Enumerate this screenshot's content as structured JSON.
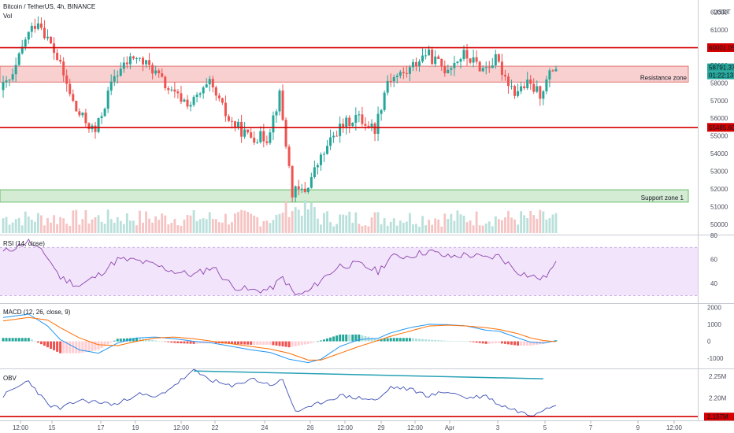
{
  "header": {
    "symbol": "Bitcoin / TetherUS, 4h, BINANCE",
    "volume_label": "Vol",
    "currency": "USDT"
  },
  "colors": {
    "up": "#26a69a",
    "down": "#ef5350",
    "level_line": "#d50000",
    "resistance_fill": "#f8d0d0",
    "support_fill": "#d4ecd4",
    "rsi_fill": "#f1e4fb",
    "rsi_line": "#8e44ad",
    "macd_line": "#2196f3",
    "signal_line": "#ff6d00",
    "obv_line": "#3f51b5",
    "trend_line": "#26a0b5"
  },
  "annotations": {
    "resistance_label": "Resistance zone",
    "support_label": "Support zone 1",
    "level_top": "60001.05",
    "level_bottom": "55485.60",
    "current_price": "58791.37",
    "countdown": "01:22:13",
    "obv_level": "2.157M"
  },
  "rsi_label": "RSI (14, close)",
  "macd_label": "MACD (12, 26, close, 9)",
  "obv_label": "OBV",
  "x_ticks": [
    "12:00",
    "15",
    "17",
    "19",
    "12:00",
    "22",
    "24",
    "26",
    "12:00",
    "29",
    "12:00",
    "Apr",
    "3",
    "5",
    "7",
    "9",
    "12:00"
  ],
  "chart_data": [
    {
      "type": "candlestick",
      "title": "Bitcoin / TetherUS, 4h, BINANCE",
      "ylim": [
        49500,
        62700
      ],
      "y_ticks": [
        50000,
        51000,
        52000,
        53000,
        54000,
        55000,
        56000,
        57000,
        58000,
        59000,
        60000,
        61000,
        62000
      ],
      "levels": [
        60001.05,
        55485.6
      ],
      "resistance_zone": [
        58050,
        58950
      ],
      "support_zone": [
        51250,
        51950
      ],
      "trend_points": [
        [
          0,
          57600
        ],
        [
          4,
          58300
        ],
        [
          8,
          60500
        ],
        [
          12,
          61600
        ],
        [
          18,
          59400
        ],
        [
          24,
          56400
        ],
        [
          30,
          55200
        ],
        [
          36,
          58400
        ],
        [
          42,
          59500
        ],
        [
          48,
          58800
        ],
        [
          54,
          57400
        ],
        [
          60,
          56800
        ],
        [
          66,
          57900
        ],
        [
          72,
          55900
        ],
        [
          78,
          55000
        ],
        [
          84,
          54900
        ],
        [
          88,
          57300
        ],
        [
          92,
          51800
        ],
        [
          96,
          51900
        ],
        [
          100,
          53400
        ],
        [
          106,
          55300
        ],
        [
          112,
          56100
        ],
        [
          118,
          55400
        ],
        [
          122,
          58200
        ],
        [
          128,
          58600
        ],
        [
          134,
          59700
        ],
        [
          140,
          58800
        ],
        [
          146,
          59600
        ],
        [
          152,
          58800
        ],
        [
          156,
          59300
        ],
        [
          162,
          57500
        ],
        [
          166,
          57900
        ],
        [
          170,
          57400
        ],
        [
          174,
          58791.37
        ]
      ]
    },
    {
      "type": "line",
      "title": "RSI (14, close)",
      "ylim": [
        25,
        80
      ],
      "y_ticks": [
        40,
        60,
        80
      ],
      "bands": [
        30,
        70
      ],
      "trend_points": [
        [
          0,
          66
        ],
        [
          8,
          75
        ],
        [
          14,
          62
        ],
        [
          18,
          45
        ],
        [
          24,
          38
        ],
        [
          30,
          47
        ],
        [
          36,
          60
        ],
        [
          42,
          59
        ],
        [
          48,
          55
        ],
        [
          54,
          50
        ],
        [
          60,
          47
        ],
        [
          66,
          54
        ],
        [
          72,
          38
        ],
        [
          78,
          34
        ],
        [
          84,
          35
        ],
        [
          88,
          45
        ],
        [
          92,
          30
        ],
        [
          96,
          33
        ],
        [
          100,
          43
        ],
        [
          106,
          55
        ],
        [
          112,
          56
        ],
        [
          118,
          50
        ],
        [
          122,
          62
        ],
        [
          128,
          63
        ],
        [
          134,
          67
        ],
        [
          140,
          62
        ],
        [
          146,
          64
        ],
        [
          152,
          61
        ],
        [
          156,
          63
        ],
        [
          162,
          50
        ],
        [
          166,
          46
        ],
        [
          170,
          44
        ],
        [
          174,
          56
        ]
      ]
    },
    {
      "type": "line",
      "title": "MACD (12, 26, close, 9)",
      "ylim": [
        -1500,
        2200
      ],
      "y_ticks": [
        -1000,
        0,
        1000,
        2000
      ],
      "macd_points": [
        [
          0,
          1400
        ],
        [
          8,
          1600
        ],
        [
          14,
          900
        ],
        [
          18,
          100
        ],
        [
          24,
          -500
        ],
        [
          30,
          -700
        ],
        [
          36,
          -100
        ],
        [
          42,
          200
        ],
        [
          48,
          250
        ],
        [
          54,
          150
        ],
        [
          60,
          0
        ],
        [
          66,
          -100
        ],
        [
          72,
          -300
        ],
        [
          78,
          -500
        ],
        [
          84,
          -650
        ],
        [
          90,
          -1050
        ],
        [
          96,
          -1250
        ],
        [
          100,
          -1050
        ],
        [
          106,
          -300
        ],
        [
          112,
          100
        ],
        [
          118,
          180
        ],
        [
          122,
          500
        ],
        [
          128,
          800
        ],
        [
          134,
          1000
        ],
        [
          140,
          980
        ],
        [
          146,
          900
        ],
        [
          152,
          650
        ],
        [
          156,
          600
        ],
        [
          162,
          200
        ],
        [
          166,
          -50
        ],
        [
          170,
          -100
        ],
        [
          174,
          40
        ]
      ],
      "signal_points": [
        [
          0,
          1200
        ],
        [
          8,
          1400
        ],
        [
          14,
          1250
        ],
        [
          18,
          800
        ],
        [
          24,
          200
        ],
        [
          30,
          -200
        ],
        [
          36,
          -250
        ],
        [
          42,
          0
        ],
        [
          48,
          200
        ],
        [
          54,
          250
        ],
        [
          60,
          150
        ],
        [
          66,
          0
        ],
        [
          72,
          -150
        ],
        [
          78,
          -300
        ],
        [
          84,
          -450
        ],
        [
          90,
          -700
        ],
        [
          96,
          -1100
        ],
        [
          100,
          -1100
        ],
        [
          106,
          -700
        ],
        [
          112,
          -300
        ],
        [
          118,
          50
        ],
        [
          122,
          300
        ],
        [
          128,
          600
        ],
        [
          134,
          900
        ],
        [
          140,
          950
        ],
        [
          146,
          900
        ],
        [
          152,
          800
        ],
        [
          156,
          700
        ],
        [
          162,
          450
        ],
        [
          166,
          200
        ],
        [
          170,
          50
        ],
        [
          174,
          -20
        ]
      ]
    },
    {
      "type": "line",
      "title": "OBV",
      "ylim": [
        2.152,
        2.266
      ],
      "y_ticks": [
        2.2,
        2.25
      ],
      "obv_level": 2.157,
      "trend_points": [
        [
          0,
          2.205
        ],
        [
          8,
          2.24
        ],
        [
          14,
          2.185
        ],
        [
          18,
          2.175
        ],
        [
          24,
          2.195
        ],
        [
          30,
          2.19
        ],
        [
          36,
          2.185
        ],
        [
          42,
          2.21
        ],
        [
          48,
          2.2
        ],
        [
          54,
          2.23
        ],
        [
          60,
          2.262
        ],
        [
          66,
          2.24
        ],
        [
          72,
          2.225
        ],
        [
          78,
          2.245
        ],
        [
          84,
          2.23
        ],
        [
          88,
          2.24
        ],
        [
          92,
          2.17
        ],
        [
          96,
          2.175
        ],
        [
          100,
          2.19
        ],
        [
          106,
          2.205
        ],
        [
          112,
          2.2
        ],
        [
          118,
          2.195
        ],
        [
          122,
          2.225
        ],
        [
          128,
          2.22
        ],
        [
          134,
          2.205
        ],
        [
          140,
          2.215
        ],
        [
          146,
          2.2
        ],
        [
          152,
          2.205
        ],
        [
          156,
          2.185
        ],
        [
          162,
          2.17
        ],
        [
          166,
          2.16
        ],
        [
          170,
          2.175
        ],
        [
          174,
          2.185
        ]
      ],
      "trend_line": [
        [
          60,
          2.262
        ],
        [
          170,
          2.244
        ]
      ]
    }
  ]
}
